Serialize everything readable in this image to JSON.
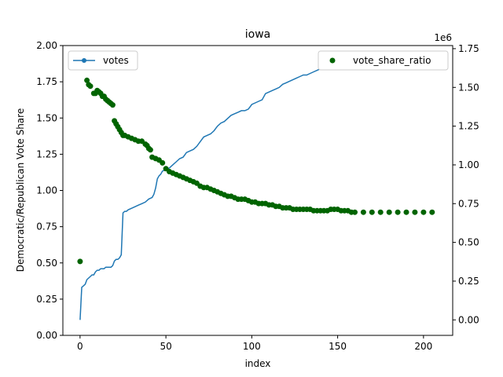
{
  "chart_data": {
    "type": "line",
    "title": "iowa",
    "xlabel": "index",
    "ylabel_left": "Democratic/Republican Vote Share",
    "ylabel_right": "",
    "right_axis_offset_text": "1e6",
    "xlim": [
      -10,
      217
    ],
    "ylim_left": [
      0,
      2.0
    ],
    "ylim_right": [
      -0.1,
      1.77
    ],
    "x_ticks": [
      0,
      50,
      100,
      150,
      200
    ],
    "y_ticks_left": [
      "0.00",
      "0.25",
      "0.50",
      "0.75",
      "1.00",
      "1.25",
      "1.50",
      "1.75",
      "2.00"
    ],
    "y_ticks_right": [
      "0.00",
      "0.25",
      "0.50",
      "0.75",
      "1.00",
      "1.25",
      "1.50",
      "1.75"
    ],
    "grid": false,
    "legend_left": {
      "placement": "top-left",
      "label": "votes",
      "color": "#1f77b4"
    },
    "legend_right": {
      "placement": "top-right",
      "label": "vote_share_ratio",
      "color": "#006400"
    },
    "series": [
      {
        "name": "votes",
        "axis": "right",
        "kind": "line",
        "color": "#1f77b4",
        "x": [
          0,
          1,
          2,
          3,
          4,
          5,
          6,
          7,
          8,
          9,
          10,
          11,
          12,
          13,
          14,
          15,
          16,
          17,
          18,
          19,
          20,
          21,
          22,
          23,
          24,
          25,
          26,
          27,
          28,
          30,
          32,
          34,
          36,
          38,
          40,
          42,
          43,
          44,
          45,
          46,
          47,
          48,
          50,
          52,
          54,
          56,
          58,
          60,
          62,
          64,
          66,
          68,
          70,
          72,
          74,
          76,
          78,
          80,
          82,
          84,
          86,
          88,
          90,
          92,
          94,
          96,
          98,
          100,
          102,
          104,
          106,
          108,
          110,
          112,
          114,
          116,
          118,
          120,
          122,
          124,
          126,
          128,
          130,
          132,
          134,
          136,
          138,
          140,
          142,
          144,
          146,
          148,
          150,
          155,
          160,
          170,
          180,
          190,
          200,
          207
        ],
        "values": [
          0.0,
          0.21,
          0.22,
          0.23,
          0.26,
          0.27,
          0.28,
          0.29,
          0.29,
          0.31,
          0.32,
          0.32,
          0.33,
          0.33,
          0.33,
          0.34,
          0.34,
          0.34,
          0.34,
          0.35,
          0.38,
          0.39,
          0.39,
          0.4,
          0.42,
          0.69,
          0.7,
          0.7,
          0.71,
          0.72,
          0.73,
          0.74,
          0.75,
          0.76,
          0.78,
          0.79,
          0.81,
          0.85,
          0.91,
          0.93,
          0.94,
          0.96,
          0.97,
          0.98,
          1.0,
          1.02,
          1.04,
          1.05,
          1.08,
          1.09,
          1.1,
          1.12,
          1.15,
          1.18,
          1.19,
          1.2,
          1.22,
          1.25,
          1.27,
          1.28,
          1.3,
          1.32,
          1.33,
          1.34,
          1.35,
          1.35,
          1.36,
          1.39,
          1.4,
          1.41,
          1.42,
          1.46,
          1.47,
          1.48,
          1.49,
          1.5,
          1.52,
          1.53,
          1.54,
          1.55,
          1.56,
          1.57,
          1.58,
          1.58,
          1.59,
          1.6,
          1.61,
          1.62,
          1.63,
          1.64,
          1.66,
          1.67,
          1.68,
          1.69,
          1.7,
          1.7,
          1.7,
          1.71,
          1.71,
          1.71
        ]
      },
      {
        "name": "vote_share_ratio",
        "axis": "left",
        "kind": "scatter",
        "color": "#006400",
        "x": [
          0,
          4,
          5,
          6,
          8,
          9,
          10,
          11,
          12,
          13,
          14,
          15,
          16,
          17,
          18,
          19,
          20,
          21,
          22,
          23,
          24,
          25,
          26,
          28,
          30,
          32,
          34,
          36,
          38,
          39,
          40,
          41,
          42,
          44,
          46,
          48,
          50,
          52,
          54,
          56,
          58,
          60,
          62,
          64,
          66,
          68,
          70,
          72,
          74,
          76,
          78,
          80,
          82,
          84,
          86,
          88,
          90,
          92,
          94,
          96,
          98,
          100,
          102,
          104,
          106,
          108,
          110,
          112,
          114,
          116,
          118,
          120,
          122,
          124,
          126,
          128,
          130,
          132,
          134,
          136,
          138,
          140,
          142,
          144,
          146,
          148,
          150,
          152,
          154,
          156,
          158,
          160,
          165,
          170,
          175,
          180,
          185,
          190,
          195,
          200,
          205
        ],
        "values": [
          0.51,
          1.76,
          1.73,
          1.72,
          1.67,
          1.67,
          1.69,
          1.68,
          1.67,
          1.65,
          1.65,
          1.63,
          1.62,
          1.61,
          1.6,
          1.59,
          1.48,
          1.46,
          1.44,
          1.42,
          1.4,
          1.38,
          1.38,
          1.37,
          1.36,
          1.35,
          1.34,
          1.34,
          1.32,
          1.31,
          1.29,
          1.28,
          1.23,
          1.22,
          1.21,
          1.19,
          1.15,
          1.13,
          1.12,
          1.11,
          1.1,
          1.09,
          1.08,
          1.07,
          1.06,
          1.05,
          1.03,
          1.02,
          1.02,
          1.01,
          1.0,
          0.99,
          0.98,
          0.97,
          0.96,
          0.96,
          0.95,
          0.94,
          0.94,
          0.94,
          0.93,
          0.92,
          0.92,
          0.91,
          0.91,
          0.91,
          0.9,
          0.9,
          0.89,
          0.89,
          0.88,
          0.88,
          0.88,
          0.87,
          0.87,
          0.87,
          0.87,
          0.87,
          0.87,
          0.86,
          0.86,
          0.86,
          0.86,
          0.86,
          0.87,
          0.87,
          0.87,
          0.86,
          0.86,
          0.86,
          0.85,
          0.85,
          0.85,
          0.85,
          0.85,
          0.85,
          0.85,
          0.85,
          0.85,
          0.85,
          0.85
        ]
      }
    ]
  }
}
